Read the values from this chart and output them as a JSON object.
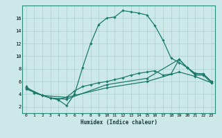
{
  "xlabel": "Humidex (Indice chaleur)",
  "background_color": "#cce8e8",
  "grid_color": "#aacfcf",
  "line_color": "#1a7a6a",
  "xlim": [
    -0.5,
    23.5
  ],
  "ylim": [
    1.0,
    18.0
  ],
  "yticks": [
    2,
    4,
    6,
    8,
    10,
    12,
    14,
    16
  ],
  "xticks": [
    0,
    1,
    2,
    3,
    4,
    5,
    6,
    7,
    8,
    9,
    10,
    11,
    12,
    13,
    14,
    15,
    16,
    17,
    18,
    19,
    20,
    21,
    22,
    23
  ],
  "line1_x": [
    0,
    1,
    2,
    3,
    4,
    5,
    6,
    7,
    8,
    9,
    10,
    11,
    12,
    13,
    14,
    15,
    16,
    17,
    18,
    19,
    20,
    21,
    22,
    23
  ],
  "line1_y": [
    5.2,
    4.2,
    3.8,
    3.4,
    3.1,
    2.2,
    4.0,
    8.2,
    12.0,
    15.0,
    16.0,
    16.2,
    17.2,
    17.0,
    16.8,
    16.5,
    14.8,
    12.5,
    9.7,
    9.0,
    8.2,
    7.3,
    7.2,
    6.0
  ],
  "line2_x": [
    0,
    2,
    3,
    4,
    5,
    6,
    7,
    8,
    9,
    10,
    11,
    12,
    13,
    14,
    15,
    16,
    17,
    18,
    19,
    20,
    21,
    22,
    23
  ],
  "line2_y": [
    5.0,
    3.8,
    3.4,
    3.2,
    3.5,
    4.5,
    5.2,
    5.5,
    5.8,
    6.0,
    6.3,
    6.6,
    7.0,
    7.3,
    7.5,
    7.7,
    7.0,
    7.2,
    9.5,
    8.2,
    7.2,
    7.2,
    6.0
  ],
  "line3_x": [
    0,
    2,
    3,
    5,
    10,
    15,
    19,
    20,
    21,
    22,
    23
  ],
  "line3_y": [
    5.0,
    3.8,
    3.4,
    3.2,
    5.5,
    6.5,
    9.5,
    8.2,
    7.0,
    7.0,
    5.8
  ],
  "line4_x": [
    0,
    2,
    5,
    10,
    15,
    19,
    21,
    23
  ],
  "line4_y": [
    4.8,
    3.8,
    3.5,
    5.0,
    6.0,
    7.5,
    6.8,
    5.8
  ]
}
